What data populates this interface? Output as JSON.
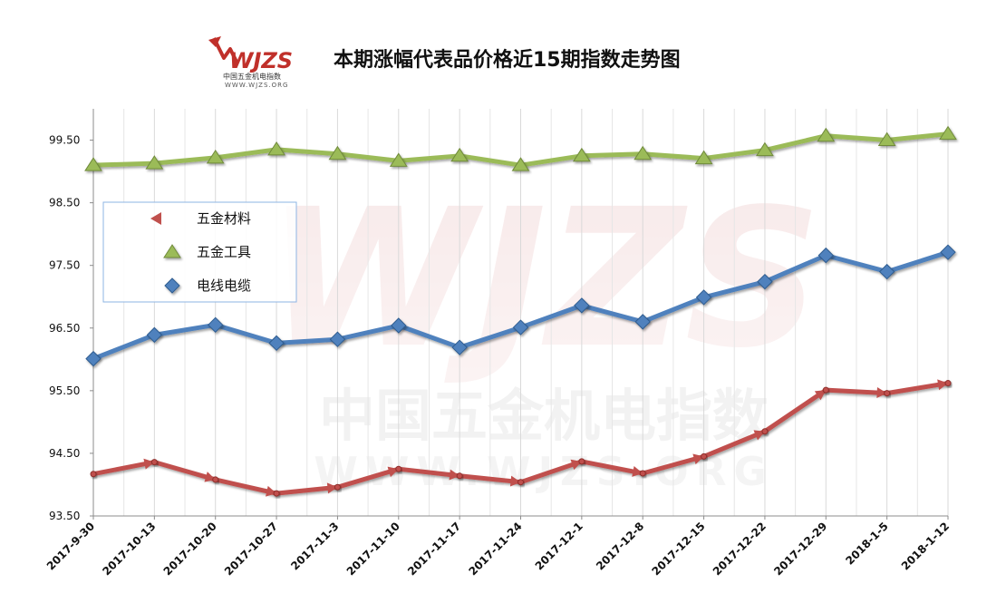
{
  "logo": {
    "text": "WJZS",
    "sub_cn": "中国五金机电指数",
    "sub_url": "WWW.WJZS.ORG"
  },
  "watermark": {
    "text": "WJZS",
    "cn": "中国五金机电指数",
    "url": "WWW.WJZS.ORG"
  },
  "chart_data": {
    "type": "line",
    "title": "本期涨幅代表品价格近15期指数走势图",
    "xlabel": "",
    "ylabel": "",
    "ylim": [
      93.5,
      100.0
    ],
    "yticks": [
      93.5,
      94.5,
      95.5,
      96.5,
      97.5,
      98.5,
      99.5
    ],
    "ytick_labels": [
      "93.50",
      "94.50",
      "95.50",
      "96.50",
      "97.50",
      "98.50",
      "99.50"
    ],
    "grid": "vertical",
    "legend_position": "left",
    "categories": [
      "2017-9-30",
      "2017-10-13",
      "2017-10-20",
      "2017-10-27",
      "2017-11-3",
      "2017-11-10",
      "2017-11-17",
      "2017-11-24",
      "2017-12-1",
      "2017-12-8",
      "2017-12-15",
      "2017-12-22",
      "2017-12-29",
      "2018-1-5",
      "2018-1-12"
    ],
    "series": [
      {
        "name": "五金材料",
        "color": "#c0504d",
        "marker": "arrow",
        "values": [
          94.17,
          94.36,
          94.08,
          93.86,
          93.96,
          94.25,
          94.14,
          94.04,
          94.37,
          94.18,
          94.45,
          94.85,
          95.51,
          95.46,
          95.62
        ]
      },
      {
        "name": "五金工具",
        "color": "#9bbb59",
        "marker": "triangle",
        "values": [
          99.1,
          99.13,
          99.22,
          99.35,
          99.28,
          99.17,
          99.25,
          99.1,
          99.25,
          99.28,
          99.21,
          99.34,
          99.57,
          99.5,
          99.6
        ]
      },
      {
        "name": "电线电缆",
        "color": "#4f81bd",
        "marker": "diamond",
        "values": [
          96.01,
          96.39,
          96.55,
          96.26,
          96.32,
          96.54,
          96.19,
          96.51,
          96.86,
          96.6,
          96.99,
          97.24,
          97.66,
          97.4,
          97.71
        ]
      }
    ]
  }
}
